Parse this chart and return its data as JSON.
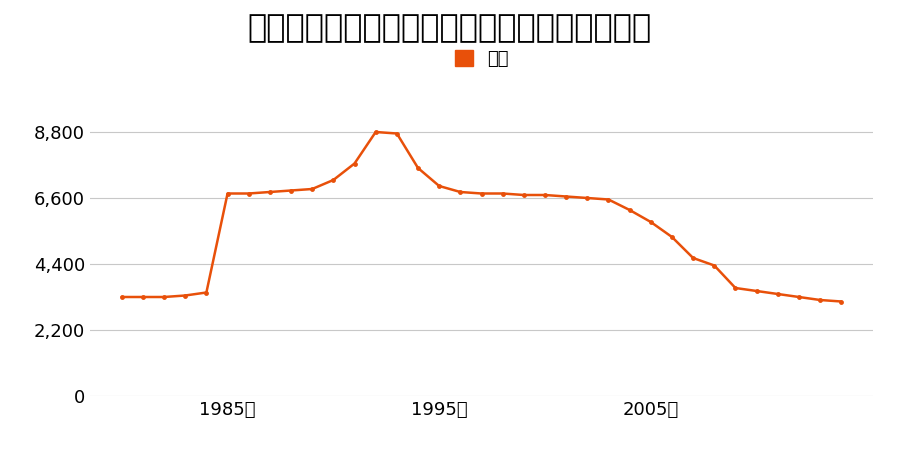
{
  "title": "愛知県豊田市舞木町小原１０３６番の地価推移",
  "legend_label": "価格",
  "line_color": "#e8500a",
  "marker_color": "#e8500a",
  "background_color": "#ffffff",
  "years": [
    1980,
    1981,
    1982,
    1983,
    1984,
    1985,
    1986,
    1987,
    1988,
    1989,
    1990,
    1991,
    1992,
    1993,
    1994,
    1995,
    1996,
    1997,
    1998,
    1999,
    2000,
    2001,
    2002,
    2003,
    2004,
    2005,
    2006,
    2007,
    2008,
    2009,
    2010,
    2011,
    2012,
    2013,
    2014
  ],
  "values": [
    3300,
    3300,
    3300,
    3350,
    3450,
    6750,
    6750,
    6800,
    6850,
    6900,
    7200,
    7750,
    8800,
    8750,
    7600,
    7000,
    6800,
    6750,
    6750,
    6700,
    6700,
    6650,
    6600,
    6550,
    6200,
    5800,
    5300,
    4600,
    4350,
    3600,
    3500,
    3400,
    3300,
    3200,
    3150
  ],
  "yticks": [
    0,
    2200,
    4400,
    6600,
    8800
  ],
  "ylim": [
    0,
    9900
  ],
  "xlim": [
    1978.5,
    2015.5
  ],
  "xtick_years": [
    1985,
    1995,
    2005
  ],
  "xtick_labels": [
    "1985年",
    "1995年",
    "2005年"
  ],
  "title_fontsize": 23,
  "legend_fontsize": 13,
  "tick_fontsize": 13
}
